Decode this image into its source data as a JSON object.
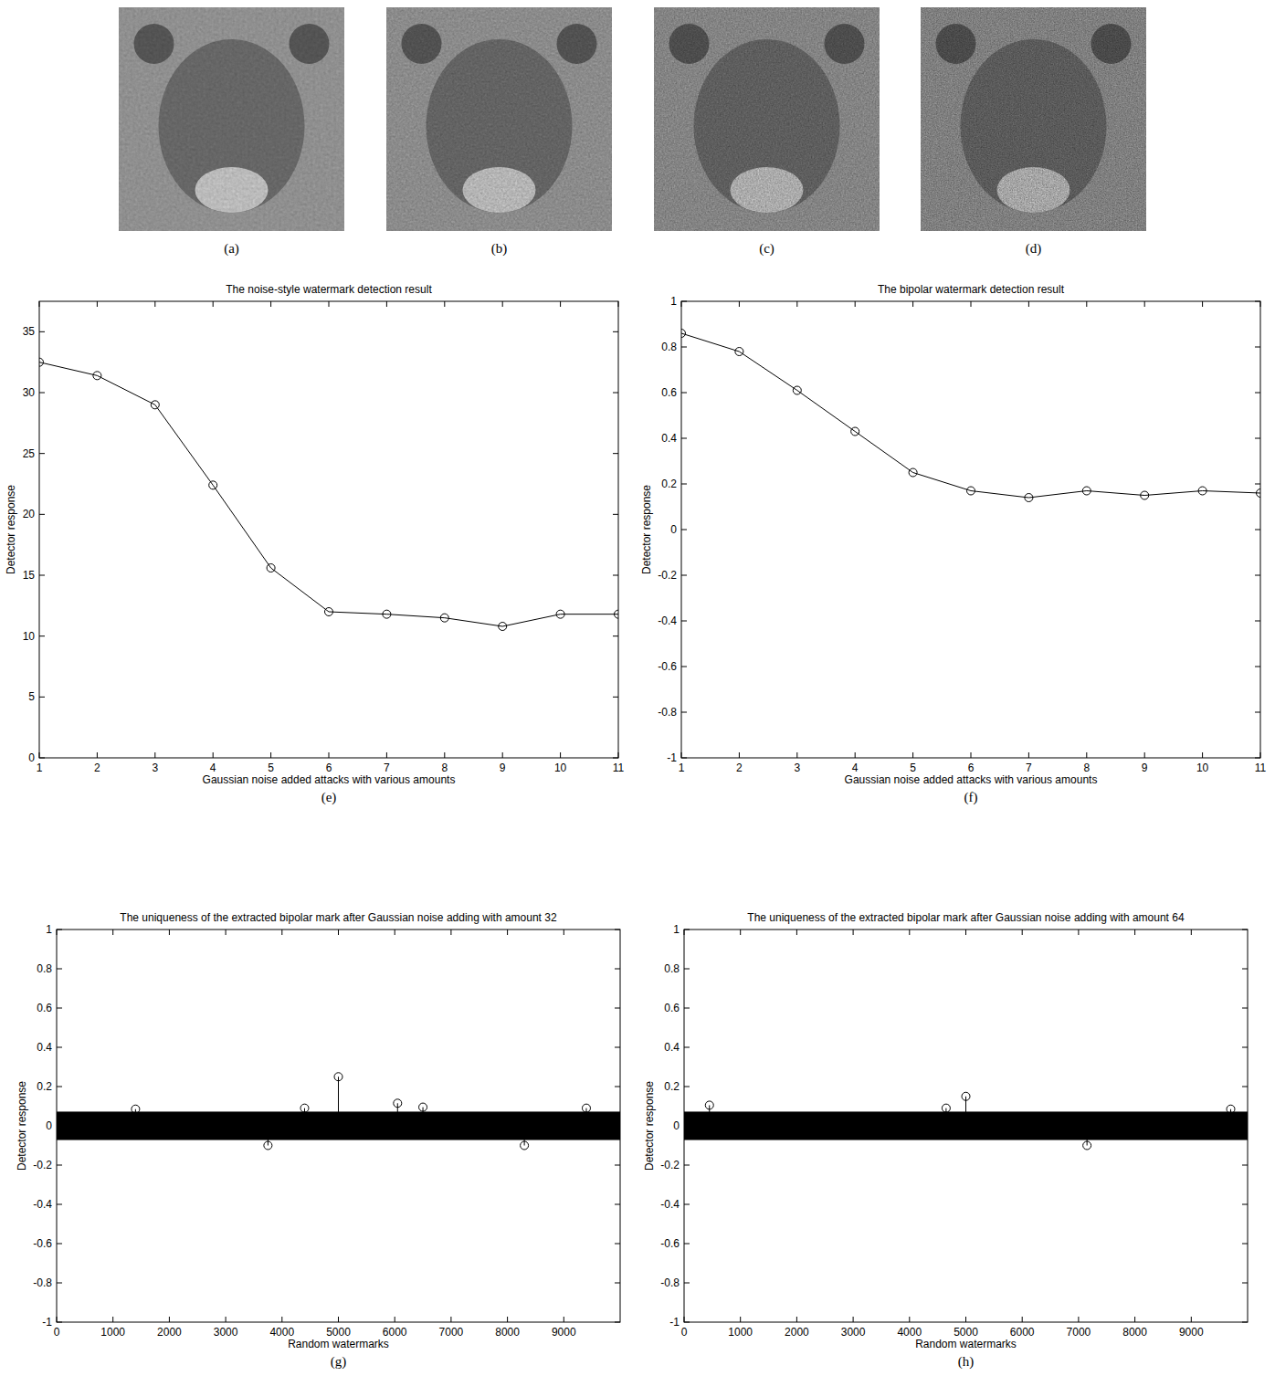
{
  "image_panels": [
    "(a)",
    "(b)",
    "(c)",
    "(d)"
  ],
  "chart_data": [
    {
      "type": "line",
      "panel_label": "(e)",
      "title": "The noise-style watermark detection result",
      "x_label": "Gaussian noise added attacks with various amounts",
      "y_label": "Detector response",
      "x": [
        1,
        2,
        3,
        4,
        5,
        6,
        7,
        8,
        9,
        10,
        11
      ],
      "series": [
        {
          "color": "#000000",
          "marker": "circle",
          "line_style": "solid",
          "values": [
            32.5,
            31.4,
            29.0,
            22.4,
            15.6,
            12.0,
            11.8,
            11.5,
            10.8,
            11.8,
            11.8
          ]
        }
      ],
      "xlim": [
        1,
        11
      ],
      "xticks": [
        1,
        2,
        3,
        4,
        5,
        6,
        7,
        8,
        9,
        10,
        11
      ],
      "ylim": [
        0,
        37.5
      ],
      "yticks": [
        0,
        5,
        10,
        15,
        20,
        25,
        30,
        35
      ],
      "grid": false
    },
    {
      "type": "line",
      "panel_label": "(f)",
      "title": "The bipolar watermark detection result",
      "x_label": "Gaussian noise added attacks with various amounts",
      "y_label": "Detector response",
      "x": [
        1,
        2,
        3,
        4,
        5,
        6,
        7,
        8,
        9,
        10,
        11
      ],
      "series": [
        {
          "color": "#000000",
          "marker": "circle",
          "line_style": "solid",
          "values": [
            0.86,
            0.78,
            0.61,
            0.43,
            0.25,
            0.17,
            0.14,
            0.17,
            0.15,
            0.17,
            0.16
          ]
        }
      ],
      "xlim": [
        1,
        11
      ],
      "xticks": [
        1,
        2,
        3,
        4,
        5,
        6,
        7,
        8,
        9,
        10,
        11
      ],
      "ylim": [
        -1,
        1
      ],
      "yticks": [
        -1,
        -0.8,
        -0.6,
        -0.4,
        -0.2,
        0,
        0.2,
        0.4,
        0.6,
        0.8,
        1
      ],
      "grid": false
    },
    {
      "type": "stem",
      "panel_label": "(g)",
      "title": "The uniqueness of the extracted bipolar mark after Gaussian noise adding with amount 32",
      "x_label": "Random watermarks",
      "y_label": "Detector response",
      "series": [
        {
          "color": "#000000",
          "marker": "circle",
          "line_style": "solid",
          "x": [
            1400,
            3750,
            4400,
            5000,
            6050,
            6500,
            8300,
            9400
          ],
          "values": [
            0.085,
            -0.1,
            0.09,
            0.25,
            0.115,
            0.095,
            -0.1,
            0.09
          ]
        }
      ],
      "band": {
        "x": [
          0,
          10000
        ],
        "lower": [
          -0.07,
          -0.07
        ],
        "upper": [
          0.07,
          0.07
        ]
      },
      "xlim": [
        0,
        10000
      ],
      "xticks": [
        0,
        1000,
        2000,
        3000,
        4000,
        5000,
        6000,
        7000,
        8000,
        9000
      ],
      "ylim": [
        -1,
        1
      ],
      "yticks": [
        -1,
        -0.8,
        -0.6,
        -0.4,
        -0.2,
        0,
        0.2,
        0.4,
        0.6,
        0.8,
        1
      ],
      "grid": false
    },
    {
      "type": "stem",
      "panel_label": "(h)",
      "title": "The uniqueness of the extracted bipolar mark after Gaussian noise adding with amount 64",
      "x_label": "Random watermarks",
      "y_label": "Detector response",
      "series": [
        {
          "color": "#000000",
          "marker": "circle",
          "line_style": "solid",
          "x": [
            450,
            4650,
            5000,
            7150,
            9700
          ],
          "values": [
            0.105,
            0.09,
            0.15,
            -0.1,
            0.085
          ]
        }
      ],
      "band": {
        "x": [
          0,
          10000
        ],
        "lower": [
          -0.07,
          -0.07
        ],
        "upper": [
          0.07,
          0.07
        ]
      },
      "xlim": [
        0,
        10000
      ],
      "xticks": [
        0,
        1000,
        2000,
        3000,
        4000,
        5000,
        6000,
        7000,
        8000,
        9000
      ],
      "ylim": [
        -1,
        1
      ],
      "yticks": [
        -1,
        -0.8,
        -0.6,
        -0.4,
        -0.2,
        0,
        0.2,
        0.4,
        0.6,
        0.8,
        1
      ],
      "grid": false
    }
  ]
}
